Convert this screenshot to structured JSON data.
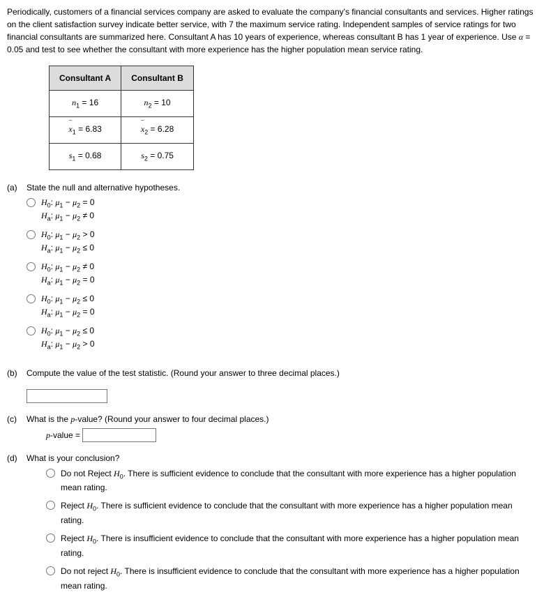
{
  "intro": "Periodically, customers of a financial services company are asked to evaluate the company's financial consultants and services. Higher ratings on the client satisfaction survey indicate better service, with 7 the maximum service rating. Independent samples of service ratings for two financial consultants are summarized here. Consultant A has 10 years of experience, whereas consultant B has 1 year of experience. Use α = 0.05 and test to see whether the consultant with more experience has the higher population mean service rating.",
  "table": {
    "headers": [
      "Consultant A",
      "Consultant B"
    ],
    "rows": {
      "n": {
        "a_label": "n",
        "a_sub": "1",
        "a_val": "16",
        "b_label": "n",
        "b_sub": "2",
        "b_val": "10"
      },
      "xbar": {
        "a_label": "x",
        "a_sub": "1",
        "a_val": "6.83",
        "b_label": "x",
        "b_sub": "2",
        "b_val": "6.28"
      },
      "s": {
        "a_label": "s",
        "a_sub": "1",
        "a_val": "0.68",
        "b_label": "s",
        "b_sub": "2",
        "b_val": "0.75"
      }
    }
  },
  "parts": {
    "a": {
      "label": "(a)",
      "prompt": "State the null and alternative hypotheses.",
      "options": [
        {
          "h0_rel": "= 0",
          "ha_rel": "≠ 0"
        },
        {
          "h0_rel": "> 0",
          "ha_rel": "≤ 0"
        },
        {
          "h0_rel": "≠ 0",
          "ha_rel": "= 0"
        },
        {
          "h0_rel": "≤ 0",
          "ha_rel": "= 0"
        },
        {
          "h0_rel": "≤ 0",
          "ha_rel": "> 0"
        }
      ]
    },
    "b": {
      "label": "(b)",
      "prompt": "Compute the value of the test statistic. (Round your answer to three decimal places.)"
    },
    "c": {
      "label": "(c)",
      "prompt_pre": "What is the ",
      "prompt_mid": "p",
      "prompt_post": "-value? (Round your answer to four decimal places.)",
      "pvalue_label_pre": "p",
      "pvalue_label_post": "-value ="
    },
    "d": {
      "label": "(d)",
      "prompt": "What is your conclusion?",
      "options": [
        "Do not Reject H0. There is sufficient evidence to conclude that the consultant with more experience has a higher population mean rating.",
        "Reject H0. There is sufficient evidence to conclude that the consultant with more experience has a higher population mean rating.",
        "Reject H0. There is insufficient evidence to conclude that the consultant with more experience has a higher population mean rating.",
        "Do not reject H0. There is insufficient evidence to conclude that the consultant with more experience has a higher population mean rating."
      ]
    }
  }
}
